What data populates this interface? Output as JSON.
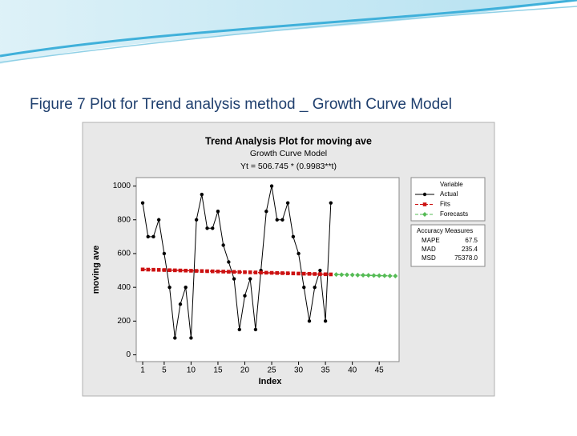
{
  "caption": "Figure 7 Plot for Trend analysis method _ Growth Curve Model",
  "chart_data": {
    "type": "line",
    "title": "Trend Analysis Plot for moving ave",
    "subtitle": [
      "Growth Curve Model",
      "Yt = 506.745 * (0.9983**t)"
    ],
    "x_label": "Index",
    "y_label": "moving ave",
    "xlim": [
      -0.2,
      48.7
    ],
    "ylim": [
      -40,
      1050
    ],
    "xticks": [
      1,
      5,
      10,
      15,
      20,
      25,
      30,
      35,
      40,
      45
    ],
    "yticks": [
      0,
      200,
      400,
      600,
      800,
      1000
    ],
    "legend_title": "Variable",
    "series": [
      {
        "name": "Actual",
        "color": "#000000",
        "marker": "circle",
        "dash": false,
        "x": [
          1,
          2,
          3,
          4,
          5,
          6,
          7,
          8,
          9,
          10,
          11,
          12,
          13,
          14,
          15,
          16,
          17,
          18,
          19,
          20,
          21,
          22,
          23,
          24,
          25,
          26,
          27,
          28,
          29,
          30,
          31,
          32,
          33,
          34,
          35,
          36
        ],
        "values": [
          900,
          700,
          700,
          800,
          600,
          400,
          100,
          300,
          400,
          100,
          800,
          950,
          750,
          750,
          850,
          650,
          550,
          450,
          150,
          350,
          450,
          150,
          500,
          850,
          1000,
          800,
          800,
          900,
          700,
          600,
          400,
          200,
          400,
          500,
          200,
          900
        ]
      },
      {
        "name": "Fits",
        "color": "#cc1111",
        "marker": "square",
        "dash": true,
        "x": [
          1,
          2,
          3,
          4,
          5,
          6,
          7,
          8,
          9,
          10,
          11,
          12,
          13,
          14,
          15,
          16,
          17,
          18,
          19,
          20,
          21,
          22,
          23,
          24,
          25,
          26,
          27,
          28,
          29,
          30,
          31,
          32,
          33,
          34,
          35,
          36
        ],
        "values": [
          505.9,
          505.0,
          504.2,
          503.3,
          502.5,
          501.6,
          500.8,
          499.9,
          499.1,
          498.2,
          497.4,
          496.5,
          495.7,
          494.8,
          494.0,
          493.1,
          492.3,
          491.5,
          490.6,
          489.8,
          489.0,
          488.1,
          487.3,
          486.5,
          485.7,
          484.8,
          484.0,
          483.2,
          482.4,
          481.5,
          480.7,
          479.9,
          479.1,
          478.3,
          477.5,
          476.7
        ]
      },
      {
        "name": "Forecasts",
        "color": "#55bb55",
        "marker": "diamond",
        "dash": true,
        "x": [
          37,
          38,
          39,
          40,
          41,
          42,
          43,
          44,
          45,
          46,
          47,
          48
        ],
        "values": [
          475.9,
          475.0,
          474.2,
          473.4,
          472.6,
          471.8,
          471.0,
          470.2,
          469.4,
          468.6,
          467.8,
          467.0
        ]
      }
    ],
    "accuracy": {
      "title": "Accuracy Measures",
      "rows": [
        [
          "MAPE",
          "67.5"
        ],
        [
          "MAD",
          "235.4"
        ],
        [
          "MSD",
          "75378.0"
        ]
      ]
    }
  }
}
